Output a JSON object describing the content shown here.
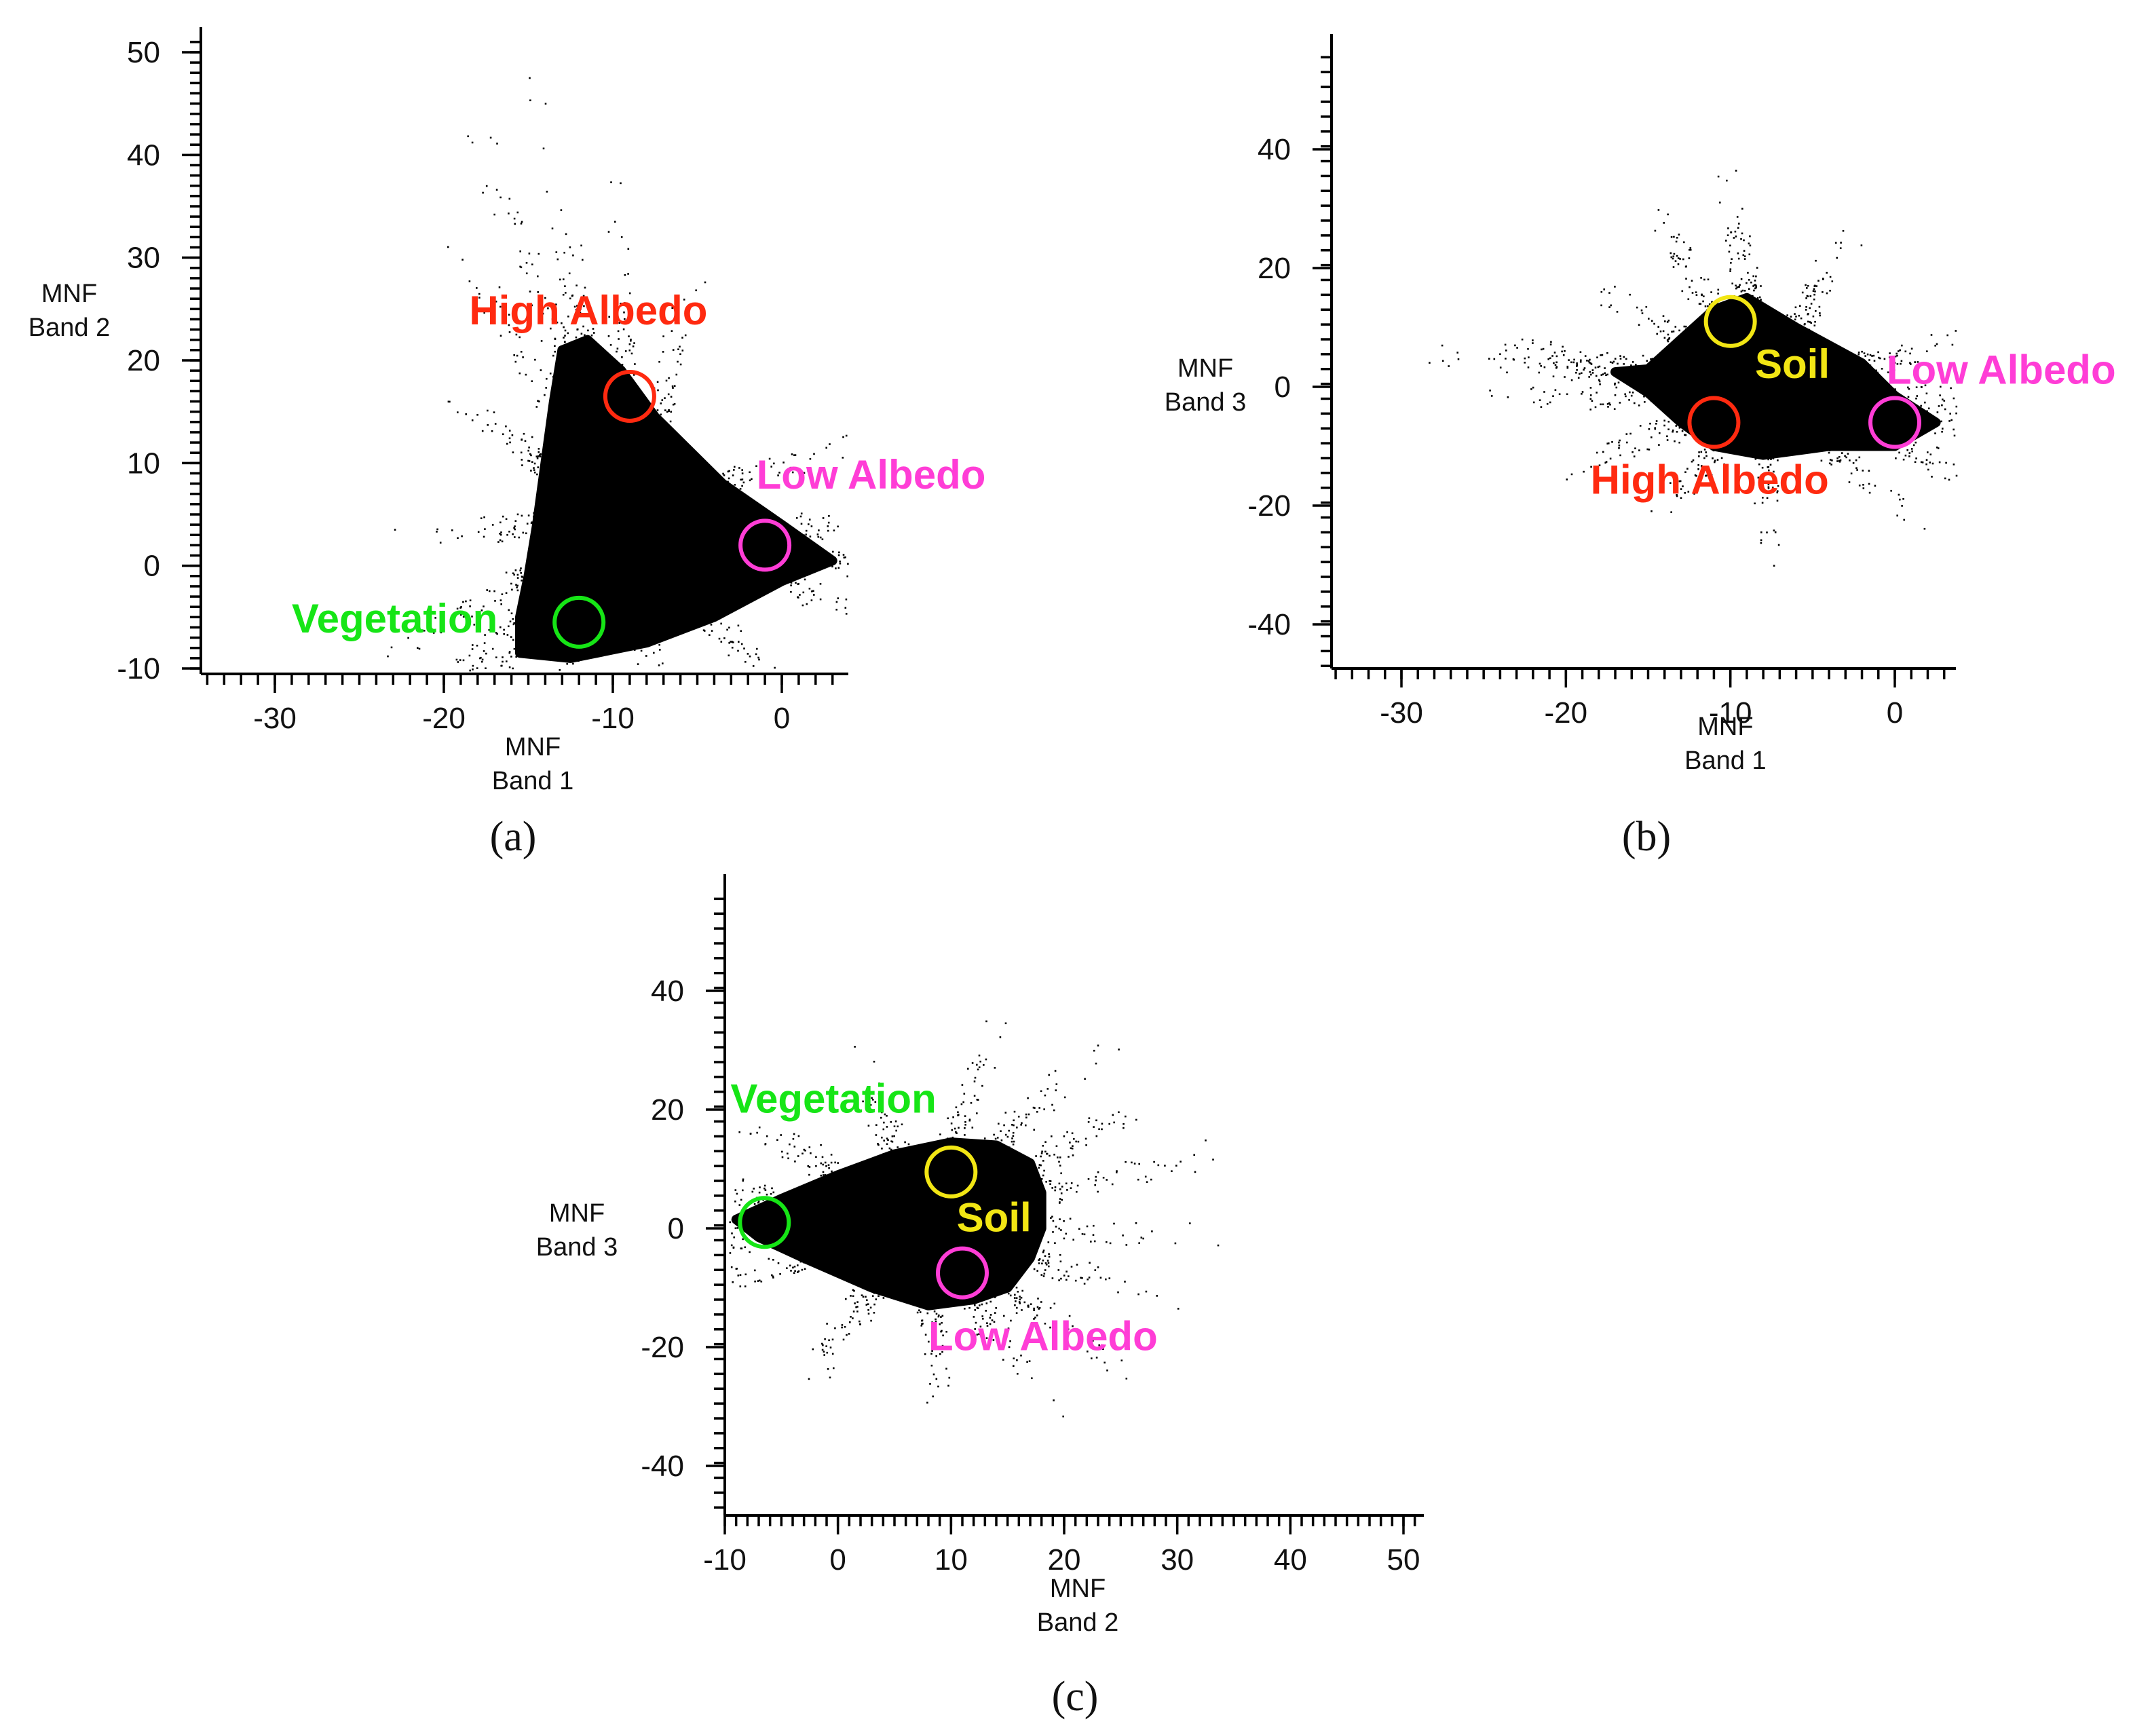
{
  "figure": {
    "panels": [
      "(a)",
      "(b)",
      "(c)"
    ]
  },
  "chart_data": [
    {
      "type": "scatter",
      "panel_label": "(a)",
      "title": "",
      "xlabel": [
        "MNF",
        "Band 1"
      ],
      "ylabel": [
        "MNF",
        "Band 2"
      ],
      "xlim": [
        -34,
        4
      ],
      "ylim": [
        -10,
        51
      ],
      "xticks": [
        -30,
        -20,
        -10,
        0
      ],
      "yticks": [
        -10,
        0,
        10,
        20,
        30,
        40,
        50
      ],
      "cloud_polygon": [
        [
          -15.5,
          -8.5
        ],
        [
          -12.5,
          -9
        ],
        [
          -8,
          -7.5
        ],
        [
          -4,
          -5
        ],
        [
          0,
          -1.5
        ],
        [
          3,
          0.5
        ],
        [
          0,
          4
        ],
        [
          -3.5,
          8
        ],
        [
          -7.5,
          14.5
        ],
        [
          -9.5,
          19
        ],
        [
          -11.5,
          22
        ],
        [
          -13,
          21
        ],
        [
          -13.5,
          16
        ],
        [
          -14,
          10
        ],
        [
          -14.5,
          4
        ],
        [
          -15,
          -1
        ],
        [
          -15.5,
          -5
        ]
      ],
      "endmembers": [
        {
          "name": "High Albedo",
          "x": -9,
          "y": 16.5,
          "color": "#ff2a10"
        },
        {
          "name": "Low Albedo",
          "x": -1,
          "y": 2,
          "color": "#ff3dd6"
        },
        {
          "name": "Vegetation",
          "x": -12,
          "y": -5.5,
          "color": "#16e516"
        }
      ],
      "labels": [
        {
          "text": "High Albedo",
          "x": -18.5,
          "y": 23.5,
          "color": "#ff2a10"
        },
        {
          "text": "Low Albedo",
          "x": -1.5,
          "y": 7.5,
          "color": "#ff3dd6"
        },
        {
          "text": "Vegetation",
          "x": -29,
          "y": -6.5,
          "color": "#16e516"
        }
      ]
    },
    {
      "type": "scatter",
      "panel_label": "(b)",
      "title": "",
      "xlabel": [
        "MNF",
        "Band 1"
      ],
      "ylabel": [
        "MNF",
        "Band 3"
      ],
      "xlim": [
        -34,
        3.5
      ],
      "ylim": [
        -47,
        56
      ],
      "xticks": [
        -30,
        -20,
        -10,
        0
      ],
      "yticks": [
        -40,
        -20,
        0,
        20,
        40
      ],
      "cloud_polygon": [
        [
          -15,
          3
        ],
        [
          -13,
          8
        ],
        [
          -11,
          13
        ],
        [
          -9,
          15
        ],
        [
          -6,
          10
        ],
        [
          -2,
          4
        ],
        [
          0,
          -1.5
        ],
        [
          2.5,
          -6
        ],
        [
          0,
          -10
        ],
        [
          -4,
          -10
        ],
        [
          -8,
          -11.5
        ],
        [
          -11,
          -10
        ],
        [
          -13,
          -6
        ],
        [
          -15,
          -1
        ],
        [
          -17,
          2.5
        ]
      ],
      "endmembers": [
        {
          "name": "Soil",
          "x": -10,
          "y": 11,
          "color": "#f2e614"
        },
        {
          "name": "High Albedo",
          "x": -11,
          "y": -6,
          "color": "#ff2a10"
        },
        {
          "name": "Low Albedo",
          "x": 0,
          "y": -6,
          "color": "#ff3dd6"
        }
      ],
      "labels": [
        {
          "text": "Soil",
          "x": -8.5,
          "y": 1.5,
          "color": "#f2e614"
        },
        {
          "text": "Low Albedo",
          "x": -0.5,
          "y": 0.5,
          "color": "#ff3dd6"
        },
        {
          "text": "High Albedo",
          "x": -18.5,
          "y": -18,
          "color": "#ff2a10"
        }
      ]
    },
    {
      "type": "scatter",
      "panel_label": "(c)",
      "title": "",
      "xlabel": [
        "MNF",
        "Band 2"
      ],
      "ylabel": [
        "MNF",
        "Band 3"
      ],
      "xlim": [
        -10,
        51
      ],
      "ylim": [
        -47,
        56
      ],
      "xticks": [
        -10,
        0,
        10,
        20,
        30,
        40,
        50
      ],
      "yticks": [
        -40,
        -20,
        0,
        20,
        40
      ],
      "cloud_polygon": [
        [
          -9,
          1.5
        ],
        [
          -5,
          5
        ],
        [
          0,
          9
        ],
        [
          5,
          12.5
        ],
        [
          10,
          14.5
        ],
        [
          14,
          14
        ],
        [
          17,
          11
        ],
        [
          18,
          6
        ],
        [
          18,
          0
        ],
        [
          17,
          -5
        ],
        [
          15,
          -10
        ],
        [
          12,
          -12
        ],
        [
          8,
          -13
        ],
        [
          3,
          -10
        ],
        [
          -3,
          -5
        ],
        [
          -7,
          -1.5
        ]
      ],
      "endmembers": [
        {
          "name": "Vegetation",
          "x": -6.5,
          "y": 1,
          "color": "#16e516"
        },
        {
          "name": "Soil",
          "x": 10,
          "y": 9.5,
          "color": "#f2e614"
        },
        {
          "name": "Low Albedo",
          "x": 11,
          "y": -7.5,
          "color": "#ff3dd6"
        }
      ],
      "labels": [
        {
          "text": "Vegetation",
          "x": -9.5,
          "y": 19.5,
          "color": "#16e516"
        },
        {
          "text": "Soil",
          "x": 10.5,
          "y": -0.5,
          "color": "#f2e614"
        },
        {
          "text": "Low Albedo",
          "x": 8,
          "y": -20.5,
          "color": "#ff3dd6"
        }
      ]
    }
  ]
}
